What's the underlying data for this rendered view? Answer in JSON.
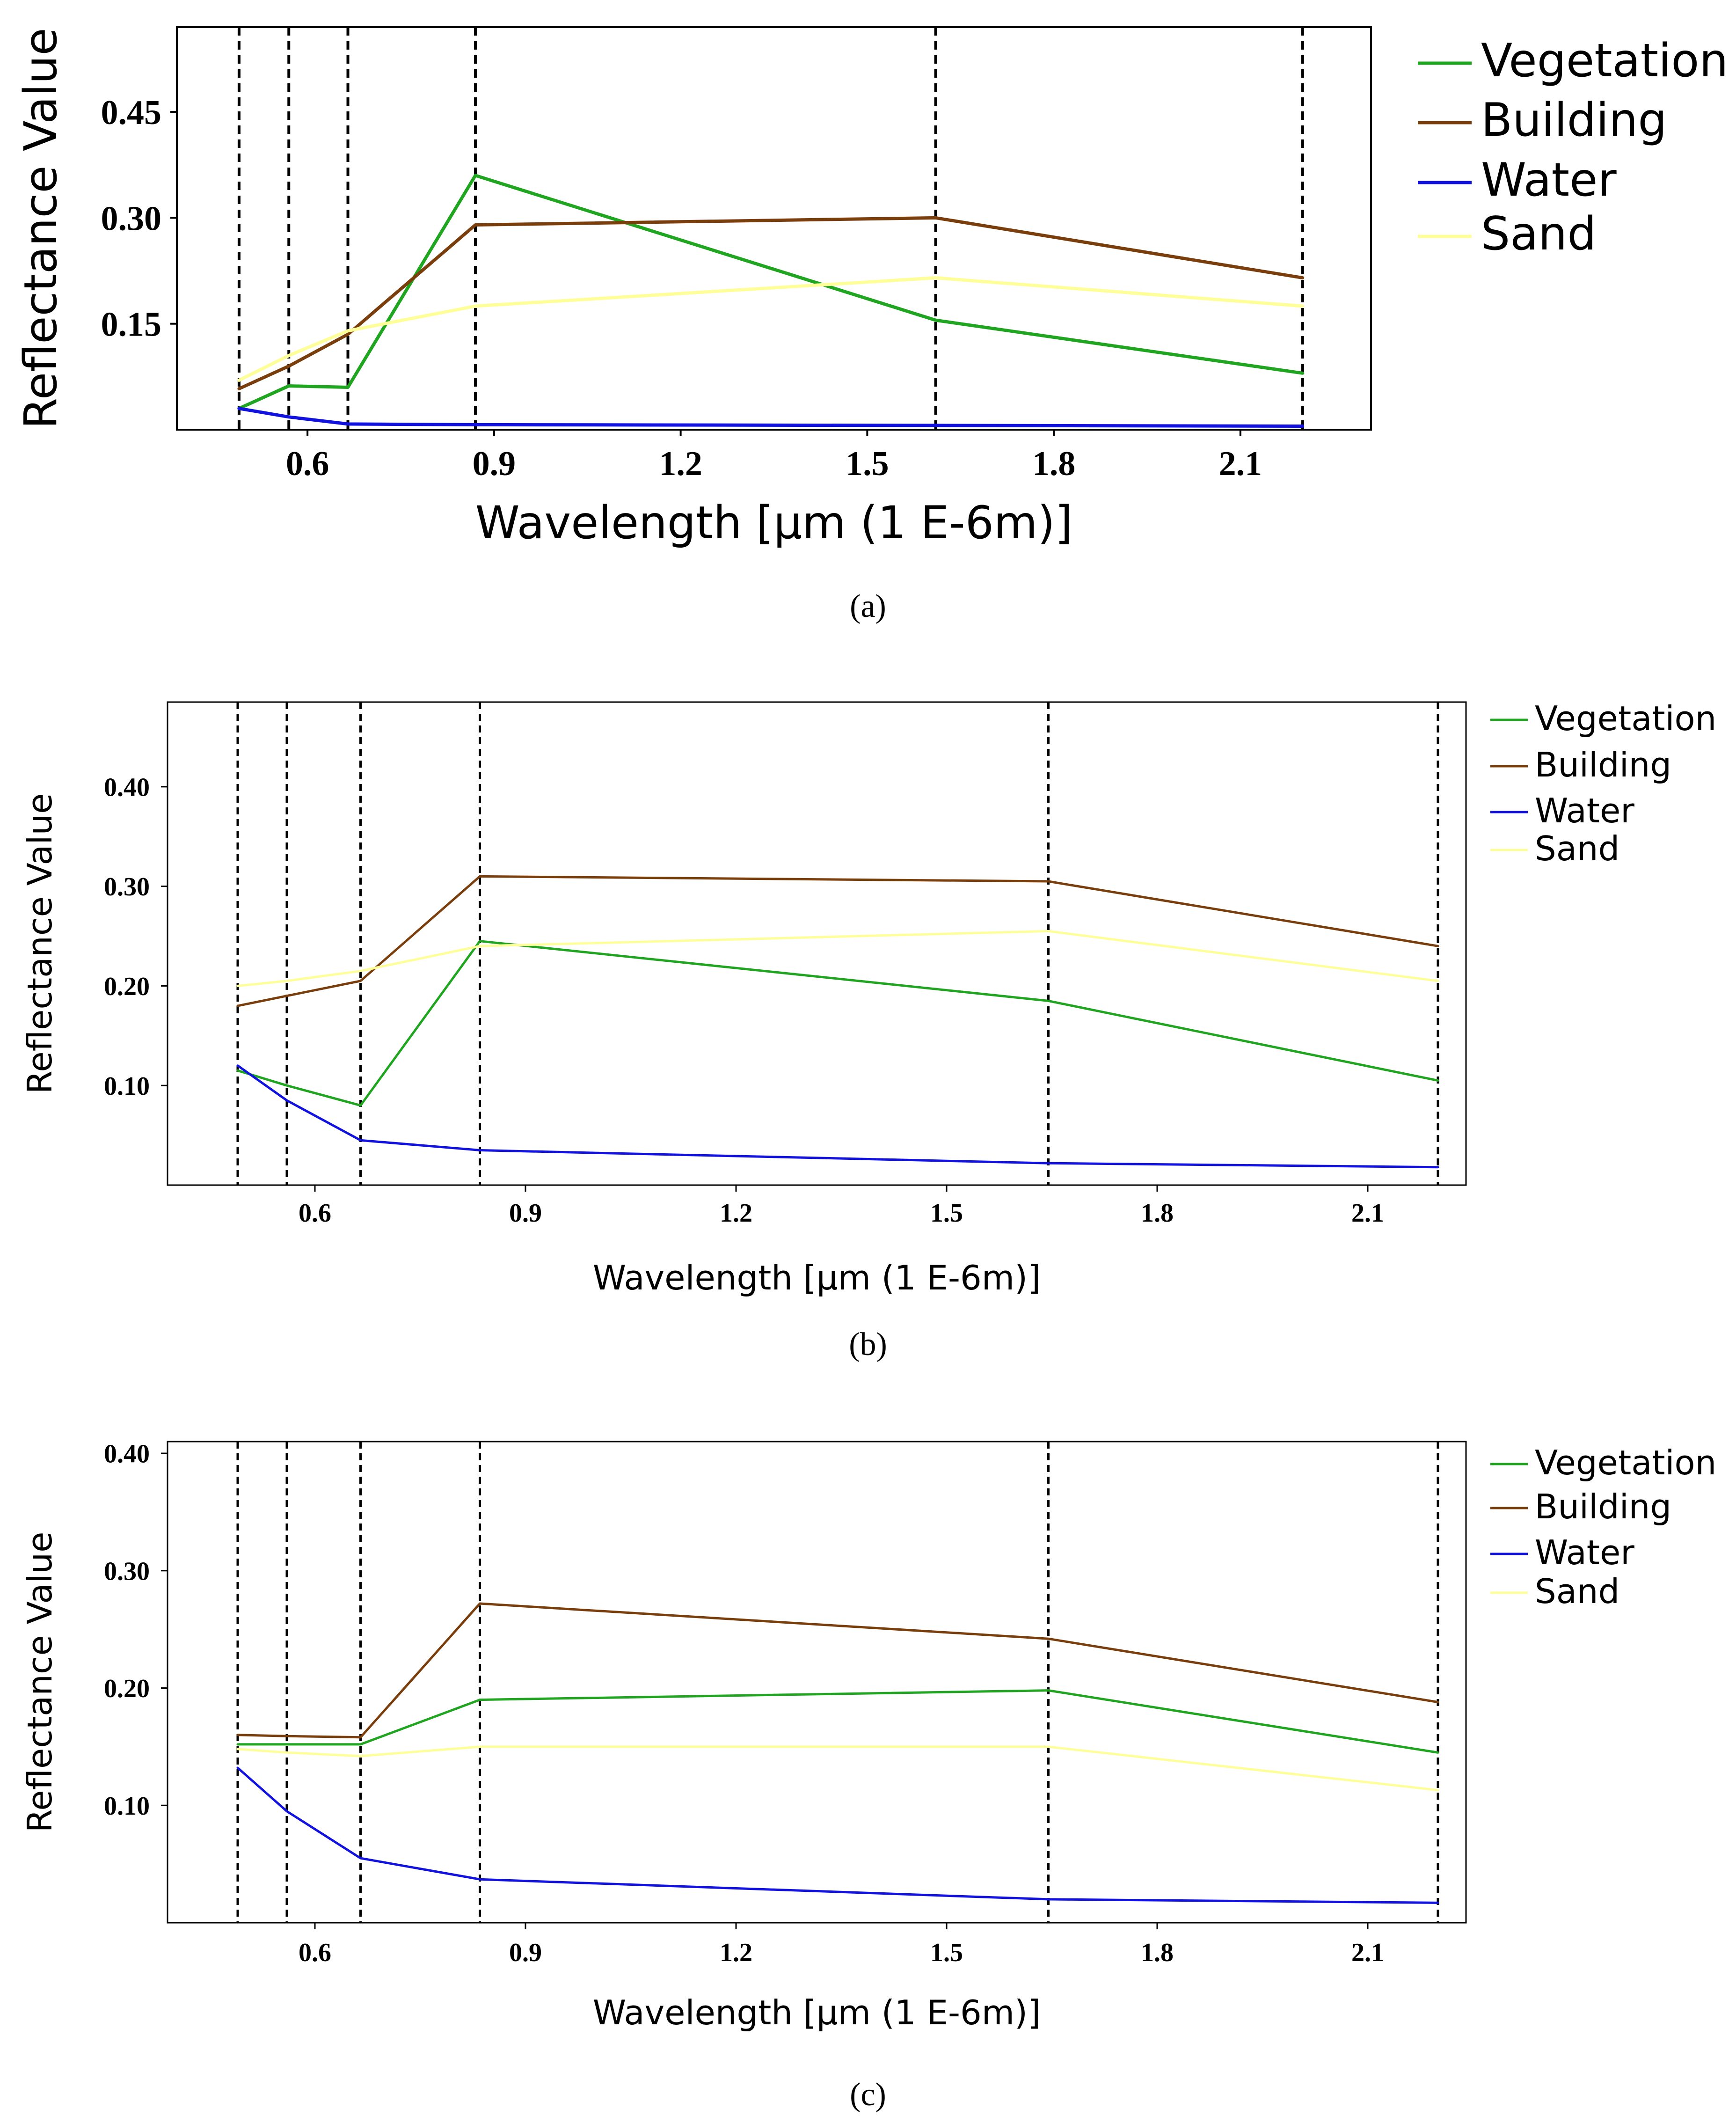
{
  "figure": {
    "colors": {
      "Vegetation": "#1fa51f",
      "Building": "#7a3d0c",
      "Water": "#1212e0",
      "Sand": "#ffff99",
      "axis": "#000000",
      "dashes": "#000000"
    }
  },
  "chart_data": [
    {
      "type": "line",
      "caption": "(a)",
      "xlabel": "Wavelength [μm (1 E-6m)]",
      "ylabel": "Reflectance Value",
      "xlim": [
        0.39,
        2.31
      ],
      "ylim": [
        0.0,
        0.57
      ],
      "xticks": [
        0.6,
        0.9,
        1.2,
        1.5,
        1.8,
        2.1
      ],
      "xtick_labels": [
        "0.6",
        "0.9",
        "1.2",
        "1.5",
        "1.8",
        "2.1"
      ],
      "yticks": [
        0.15,
        0.3,
        0.45
      ],
      "ytick_labels": [
        "0.15",
        "0.30",
        "0.45"
      ],
      "vlines": [
        0.49,
        0.57,
        0.665,
        0.87,
        1.61,
        2.2
      ],
      "x": [
        0.49,
        0.57,
        0.665,
        0.87,
        1.61,
        2.2
      ],
      "series": [
        {
          "name": "Vegetation",
          "values": [
            0.03,
            0.062,
            0.06,
            0.36,
            0.155,
            0.08
          ]
        },
        {
          "name": "Building",
          "values": [
            0.058,
            0.09,
            0.135,
            0.29,
            0.3,
            0.215
          ]
        },
        {
          "name": "Water",
          "values": [
            0.03,
            0.018,
            0.008,
            0.007,
            0.006,
            0.005
          ]
        },
        {
          "name": "Sand",
          "values": [
            0.07,
            0.105,
            0.14,
            0.175,
            0.215,
            0.175
          ]
        }
      ],
      "legend": [
        "Vegetation",
        "Building",
        "Water",
        "Sand"
      ],
      "legend_position": "outside-right"
    },
    {
      "type": "line",
      "caption": "(b)",
      "xlabel": "Wavelength [μm (1 E-6m)]",
      "ylabel": "Reflectance Value",
      "xlim": [
        0.39,
        2.24
      ],
      "ylim": [
        0.0,
        0.485
      ],
      "xticks": [
        0.6,
        0.9,
        1.2,
        1.5,
        1.8,
        2.1
      ],
      "xtick_labels": [
        "0.6",
        "0.9",
        "1.2",
        "1.5",
        "1.8",
        "2.1"
      ],
      "yticks": [
        0.1,
        0.2,
        0.3,
        0.4
      ],
      "ytick_labels": [
        "0.10",
        "0.20",
        "0.30",
        "0.40"
      ],
      "vlines": [
        0.49,
        0.56,
        0.665,
        0.835,
        1.645,
        2.2
      ],
      "x": [
        0.49,
        0.56,
        0.665,
        0.835,
        1.645,
        2.2
      ],
      "series": [
        {
          "name": "Vegetation",
          "values": [
            0.115,
            0.1,
            0.08,
            0.245,
            0.185,
            0.105
          ]
        },
        {
          "name": "Building",
          "values": [
            0.18,
            0.19,
            0.205,
            0.31,
            0.305,
            0.24
          ]
        },
        {
          "name": "Water",
          "values": [
            0.12,
            0.085,
            0.045,
            0.035,
            0.022,
            0.018
          ]
        },
        {
          "name": "Sand",
          "values": [
            0.2,
            0.205,
            0.215,
            0.24,
            0.255,
            0.205
          ]
        }
      ],
      "legend": [
        "Vegetation",
        "Building",
        "Water",
        "Sand"
      ],
      "legend_position": "outside-right"
    },
    {
      "type": "line",
      "caption": "(c)",
      "xlabel": "Wavelength [μm (1 E-6m)]",
      "ylabel": "Reflectance Value",
      "xlim": [
        0.39,
        2.24
      ],
      "ylim": [
        0.0,
        0.41
      ],
      "xticks": [
        0.6,
        0.9,
        1.2,
        1.5,
        1.8,
        2.1
      ],
      "xtick_labels": [
        "0.6",
        "0.9",
        "1.2",
        "1.5",
        "1.8",
        "2.1"
      ],
      "yticks": [
        0.1,
        0.2,
        0.3,
        0.4
      ],
      "ytick_labels": [
        "0.10",
        "0.20",
        "0.30",
        "0.40"
      ],
      "vlines": [
        0.49,
        0.56,
        0.665,
        0.835,
        1.645,
        2.2
      ],
      "x": [
        0.49,
        0.56,
        0.665,
        0.835,
        1.645,
        2.2
      ],
      "series": [
        {
          "name": "Vegetation",
          "values": [
            0.152,
            0.152,
            0.152,
            0.19,
            0.198,
            0.145
          ]
        },
        {
          "name": "Building",
          "values": [
            0.16,
            0.159,
            0.158,
            0.272,
            0.242,
            0.188
          ]
        },
        {
          "name": "Water",
          "values": [
            0.132,
            0.095,
            0.055,
            0.037,
            0.02,
            0.017
          ]
        },
        {
          "name": "Sand",
          "values": [
            0.148,
            0.145,
            0.142,
            0.15,
            0.15,
            0.113
          ]
        }
      ],
      "legend": [
        "Vegetation",
        "Building",
        "Water",
        "Sand"
      ],
      "legend_position": "outside-right"
    }
  ]
}
